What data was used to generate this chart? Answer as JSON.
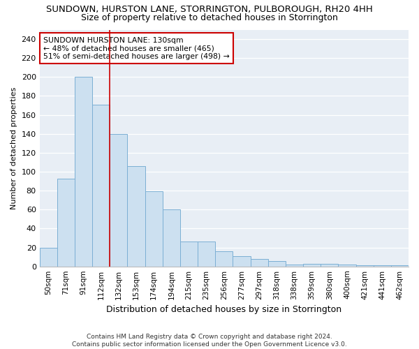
{
  "title": "SUNDOWN, HURSTON LANE, STORRINGTON, PULBOROUGH, RH20 4HH",
  "subtitle": "Size of property relative to detached houses in Storrington",
  "xlabel": "Distribution of detached houses by size in Storrington",
  "ylabel": "Number of detached properties",
  "categories": [
    "50sqm",
    "71sqm",
    "91sqm",
    "112sqm",
    "132sqm",
    "153sqm",
    "174sqm",
    "194sqm",
    "215sqm",
    "235sqm",
    "256sqm",
    "277sqm",
    "297sqm",
    "318sqm",
    "338sqm",
    "359sqm",
    "380sqm",
    "400sqm",
    "421sqm",
    "441sqm",
    "462sqm"
  ],
  "values": [
    20,
    93,
    200,
    171,
    140,
    106,
    79,
    60,
    26,
    26,
    16,
    11,
    8,
    6,
    2,
    3,
    3,
    2,
    1,
    1,
    1
  ],
  "bar_color": "#cce0f0",
  "bar_edge_color": "#7bafd4",
  "vline_x": 3.5,
  "vline_color": "#cc0000",
  "annotation_line1": "SUNDOWN HURSTON LANE: 130sqm",
  "annotation_line2": "← 48% of detached houses are smaller (465)",
  "annotation_line3": "51% of semi-detached houses are larger (498) →",
  "annotation_box_color": "#ffffff",
  "annotation_box_edge": "#cc0000",
  "ylim": [
    0,
    250
  ],
  "yticks": [
    0,
    20,
    40,
    60,
    80,
    100,
    120,
    140,
    160,
    180,
    200,
    220,
    240
  ],
  "bg_color": "#e8eef5",
  "grid_color": "#ffffff",
  "footer1": "Contains HM Land Registry data © Crown copyright and database right 2024.",
  "footer2": "Contains public sector information licensed under the Open Government Licence v3.0.",
  "title_fontsize": 9.5,
  "subtitle_fontsize": 9,
  "ylabel_fontsize": 8,
  "xlabel_fontsize": 9
}
